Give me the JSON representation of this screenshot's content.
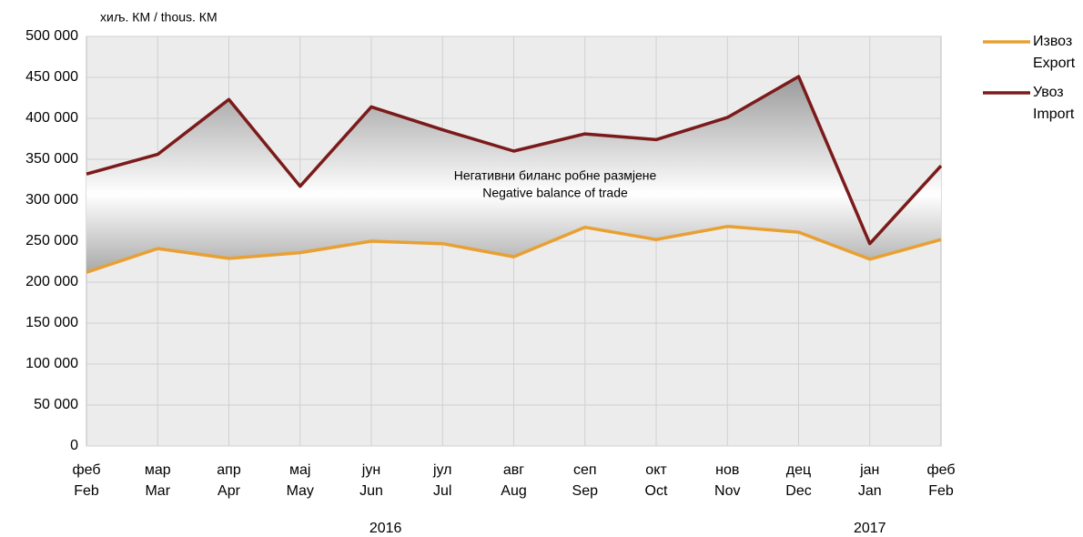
{
  "chart_data": {
    "type": "line",
    "unit_label": "хиљ. КМ / thous. КМ",
    "annotation": [
      "Негативни биланс робне размјене",
      "Negative balance of trade"
    ],
    "categories": [
      [
        "феб",
        "Feb"
      ],
      [
        "мар",
        "Mar"
      ],
      [
        "апр",
        "Apr"
      ],
      [
        "мај",
        "May"
      ],
      [
        "јун",
        "Jun"
      ],
      [
        "јул",
        "Jul"
      ],
      [
        "авг",
        "Aug"
      ],
      [
        "сеп",
        "Sep"
      ],
      [
        "окт",
        "Oct"
      ],
      [
        "нов",
        "Nov"
      ],
      [
        "дец",
        "Dec"
      ],
      [
        "јан",
        "Jan"
      ],
      [
        "феб",
        "Feb"
      ]
    ],
    "years": [
      "2016",
      "2017"
    ],
    "series": [
      {
        "name": [
          "Извоз",
          "Export"
        ],
        "color": "#e8a032",
        "values": [
          212000,
          241000,
          229000,
          236000,
          250000,
          247000,
          231000,
          267000,
          252000,
          268000,
          261000,
          228000,
          252000
        ]
      },
      {
        "name": [
          "Увоз",
          "Import"
        ],
        "color": "#7b1a1a",
        "values": [
          332000,
          356000,
          423000,
          317000,
          414000,
          386000,
          360000,
          381000,
          374000,
          401000,
          451000,
          247000,
          342000
        ]
      }
    ],
    "ylim": [
      0,
      500000
    ],
    "yticks": [
      0,
      {
        "value": 50000,
        "label": "50 000"
      },
      {
        "value": 100000,
        "label": "100 000"
      },
      {
        "value": 150000,
        "label": "150 000"
      },
      {
        "value": 200000,
        "label": "200 000"
      },
      {
        "value": 250000,
        "label": "250 000"
      },
      {
        "value": 300000,
        "label": "300 000"
      },
      {
        "value": 350000,
        "label": "350 000"
      },
      {
        "value": 400000,
        "label": "400 000"
      },
      {
        "value": 450000,
        "label": "450 000"
      },
      {
        "value": 500000,
        "label": "500 000"
      }
    ],
    "grid": true,
    "legend": "right"
  }
}
